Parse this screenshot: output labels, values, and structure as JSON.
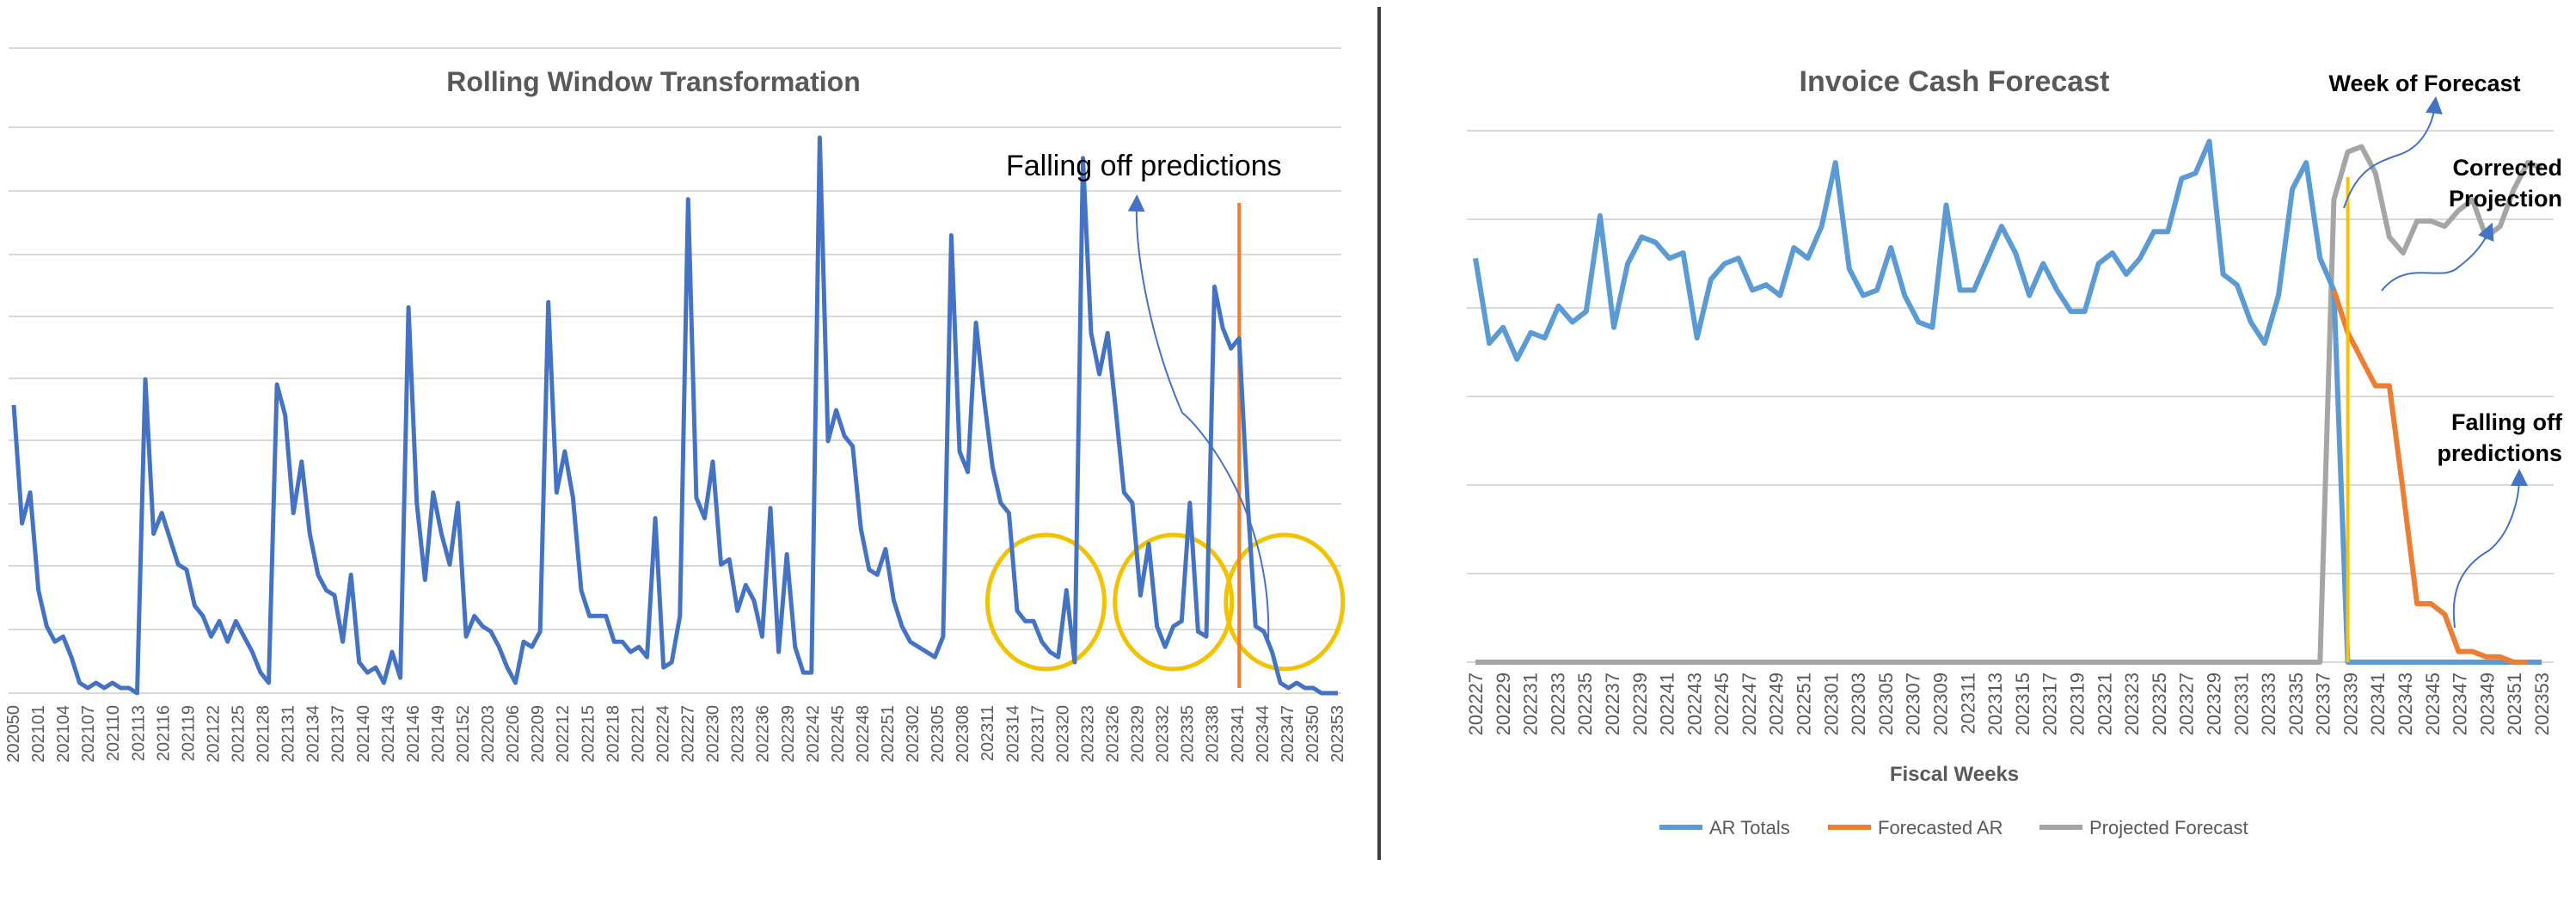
{
  "chart_data": [
    {
      "type": "line",
      "title": "Rolling Window Transformation",
      "xlabel": "",
      "ylabel": "",
      "ylim": [
        0,
        110
      ],
      "grid": true,
      "legend": "none",
      "line_color": "#4472C4",
      "marker_line_color": "#ED7D31",
      "circle_color": "#F2C200",
      "x_tick_labels": [
        "202050",
        "202101",
        "202104",
        "202107",
        "202110",
        "202113",
        "202116",
        "202119",
        "202122",
        "202125",
        "202128",
        "202131",
        "202134",
        "202137",
        "202140",
        "202143",
        "202146",
        "202149",
        "202152",
        "202203",
        "202206",
        "202209",
        "202212",
        "202215",
        "202218",
        "202221",
        "202224",
        "202227",
        "202230",
        "202233",
        "202236",
        "202239",
        "202242",
        "202245",
        "202248",
        "202251",
        "202302",
        "202305",
        "202308",
        "202311",
        "202314",
        "202317",
        "202320",
        "202323",
        "202326",
        "202329",
        "202332",
        "202335",
        "202338",
        "202341",
        "202344",
        "202347",
        "202350",
        "202353"
      ],
      "values": [
        56,
        33,
        39,
        20,
        13,
        10,
        11,
        7,
        2,
        1,
        2,
        1,
        2,
        1,
        1,
        0,
        61,
        31,
        35,
        30,
        25,
        24,
        17,
        15,
        11,
        14,
        10,
        14,
        11,
        8,
        4,
        2,
        60,
        54,
        35,
        45,
        31,
        23,
        20,
        19,
        10,
        23,
        6,
        4,
        5,
        2,
        8,
        3,
        75,
        37,
        22,
        39,
        31,
        25,
        37,
        11,
        15,
        13,
        12,
        9,
        5,
        2,
        10,
        9,
        12,
        76,
        39,
        47,
        38,
        20,
        15,
        15,
        15,
        10,
        10,
        8,
        9,
        7,
        34,
        5,
        6,
        15,
        96,
        38,
        34,
        45,
        25,
        26,
        16,
        21,
        18,
        11,
        36,
        8,
        27,
        9,
        4,
        4,
        108,
        49,
        55,
        50,
        48,
        32,
        24,
        23,
        28,
        18,
        13,
        10,
        9,
        8,
        7,
        11,
        89,
        47,
        43,
        72,
        57,
        44,
        37,
        35,
        16,
        14,
        14,
        10,
        8,
        7,
        20,
        6,
        104,
        70,
        62,
        70,
        55,
        39,
        37,
        19,
        29,
        13,
        9,
        13,
        14,
        37,
        12,
        11,
        79,
        71,
        67,
        69,
        38,
        13,
        12,
        8,
        2,
        1,
        2,
        1,
        1,
        0,
        0,
        0
      ],
      "vertical_line_index": 149,
      "circled_index_ranges": [
        [
          121,
          130
        ],
        [
          137,
          145
        ],
        [
          150,
          159
        ]
      ],
      "annotation": "Falling off predictions"
    },
    {
      "type": "line",
      "title": "Invoice Cash Forecast",
      "xlabel": "Fiscal Weeks",
      "ylabel": "",
      "ylim": [
        0,
        10
      ],
      "grid": true,
      "legend": "bottom",
      "x_tick_labels": [
        "202227",
        "202229",
        "202231",
        "202233",
        "202235",
        "202237",
        "202239",
        "202241",
        "202243",
        "202245",
        "202247",
        "202249",
        "202251",
        "202301",
        "202303",
        "202305",
        "202307",
        "202309",
        "202311",
        "202313",
        "202315",
        "202317",
        "202319",
        "202321",
        "202323",
        "202325",
        "202327",
        "202329",
        "202331",
        "202333",
        "202335",
        "202337",
        "202339",
        "202341",
        "202343",
        "202345",
        "202347",
        "202349",
        "202351",
        "202353"
      ],
      "series": [
        {
          "name": "AR Totals",
          "color": "#5B9BD5",
          "start_index": 0,
          "values": [
            7.6,
            6.0,
            6.3,
            5.7,
            6.2,
            6.1,
            6.7,
            6.4,
            6.6,
            8.4,
            6.3,
            7.5,
            8.0,
            7.9,
            7.6,
            7.7,
            6.1,
            7.2,
            7.5,
            7.6,
            7.0,
            7.1,
            6.9,
            7.8,
            7.6,
            8.2,
            9.4,
            7.4,
            6.9,
            7.0,
            7.8,
            6.9,
            6.4,
            6.3,
            8.6,
            7.0,
            7.0,
            7.6,
            8.2,
            7.7,
            6.9,
            7.5,
            7.0,
            6.6,
            6.6,
            7.5,
            7.7,
            7.3,
            7.6,
            8.1,
            8.1,
            9.1,
            9.2,
            9.8,
            7.3,
            7.1,
            6.4,
            6.0,
            6.9,
            8.9,
            9.4,
            7.6,
            7.0,
            0,
            0,
            0,
            0,
            0,
            0,
            0,
            0,
            0,
            0,
            0,
            0,
            0,
            0,
            0,
            0,
            0,
            0,
            0,
            0,
            0,
            0,
            0,
            0,
            0,
            0,
            0,
            0,
            0,
            0,
            0,
            0,
            0
          ]
        },
        {
          "name": "Forecasted AR",
          "color": "#ED7D31",
          "start_index": 62,
          "values": [
            7.0,
            6.2,
            5.7,
            5.2,
            5.2,
            3.2,
            1.1,
            1.1,
            0.9,
            0.2,
            0.2,
            0.1,
            0.1,
            0,
            0
          ]
        },
        {
          "name": "Projected Forecast",
          "color": "#A5A5A5",
          "start_index": 0,
          "values": [
            0,
            0,
            0,
            0,
            0,
            0,
            0,
            0,
            0,
            0,
            0,
            0,
            0,
            0,
            0,
            0,
            0,
            0,
            0,
            0,
            0,
            0,
            0,
            0,
            0,
            0,
            0,
            0,
            0,
            0,
            0,
            0,
            0,
            0,
            0,
            0,
            0,
            0,
            0,
            0,
            0,
            0,
            0,
            0,
            0,
            0,
            0,
            0,
            0,
            0,
            0,
            0,
            0,
            0,
            0,
            0,
            0,
            0,
            0,
            0,
            0,
            0,
            8.7,
            9.6,
            9.7,
            9.2,
            8.0,
            7.7,
            8.3,
            8.3,
            8.2,
            8.5,
            8.7,
            8.0,
            8.2,
            8.9,
            9.4,
            9.3
          ]
        }
      ],
      "vertical_line_index": 63,
      "vertical_line_color": "#FFC000",
      "annotations": [
        "Week of Forecast",
        "Corrected Projection",
        "Falling off predictions"
      ]
    }
  ],
  "annotation_texts": {
    "left_falling": "Falling off predictions",
    "week_of_forecast": "Week of Forecast",
    "corrected": "Corrected Projection",
    "right_falling": "Falling off predictions"
  }
}
